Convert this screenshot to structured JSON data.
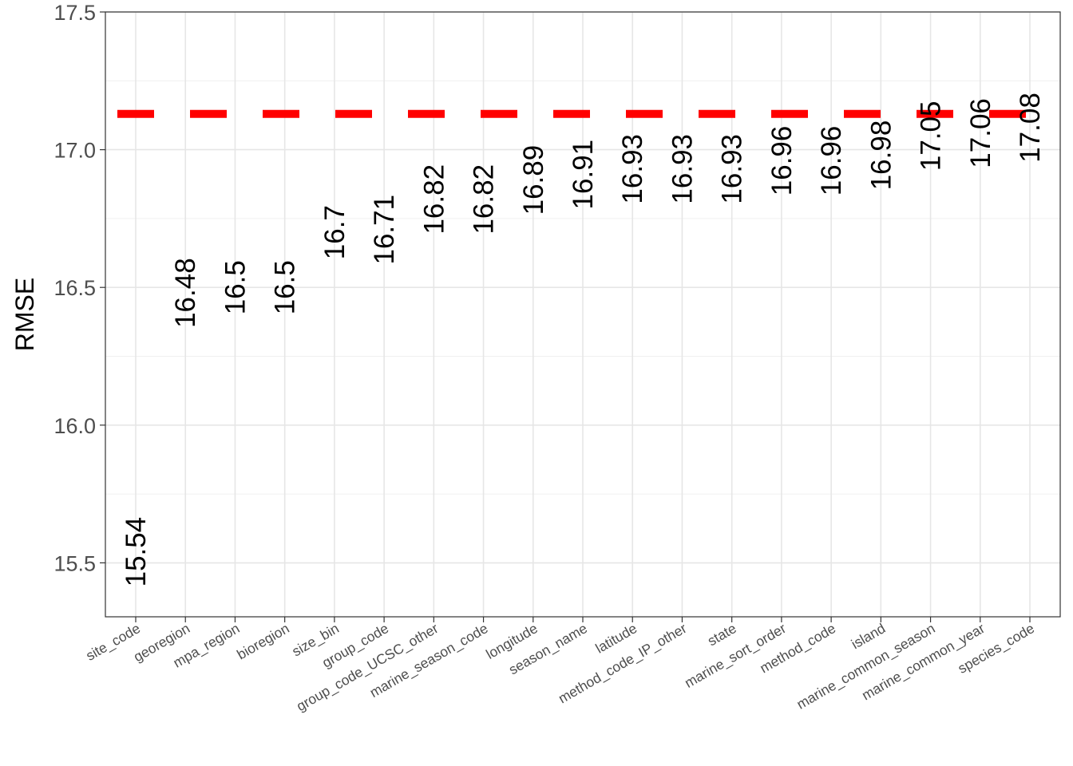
{
  "chart_data": {
    "type": "scatter",
    "title": "",
    "xlabel": "",
    "ylabel": "RMSE",
    "ylim": [
      15.3,
      17.5
    ],
    "y_ticks": [
      15.5,
      16.0,
      16.5,
      17.0,
      17.5
    ],
    "y_tick_labels": [
      "15.5",
      "16.0",
      "16.5",
      "17.0",
      "17.5"
    ],
    "grid": true,
    "reference_line": {
      "y": 17.13,
      "style": "dashed",
      "color": "#ff0000"
    },
    "categories": [
      "site_code",
      "georegion",
      "mpa_region",
      "bioregion",
      "size_bin",
      "group_code",
      "group_code_UCSC_other",
      "marine_season_code",
      "longitude",
      "season_name",
      "latitude",
      "method_code_IP_other",
      "state",
      "marine_sort_order",
      "method_code",
      "island",
      "marine_common_season",
      "marine_common_year",
      "species_code"
    ],
    "values": [
      15.54,
      16.48,
      16.5,
      16.5,
      16.7,
      16.71,
      16.82,
      16.82,
      16.89,
      16.91,
      16.93,
      16.93,
      16.93,
      16.96,
      16.96,
      16.98,
      17.05,
      17.06,
      17.08
    ],
    "value_labels": [
      "15.54",
      "16.48",
      "16.5",
      "16.5",
      "16.7",
      "16.71",
      "16.82",
      "16.82",
      "16.89",
      "16.91",
      "16.93",
      "16.93",
      "16.93",
      "16.96",
      "16.96",
      "16.98",
      "17.05",
      "17.06",
      "17.08"
    ]
  }
}
